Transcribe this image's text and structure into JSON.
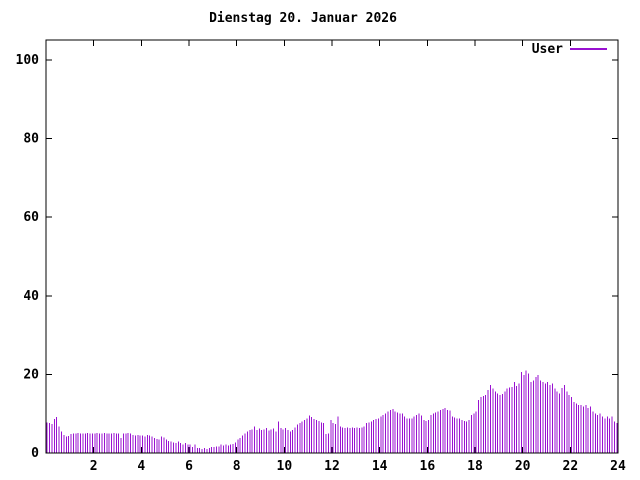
{
  "chart": {
    "title": "Dienstag 20. Januar 2026",
    "legend_label": "User"
  },
  "chart_data": {
    "type": "bar",
    "title": "Dienstag 20. Januar 2026",
    "series_name": "User",
    "x_unit": "hour_of_day",
    "sample_interval_hours": 0.1,
    "xlim": [
      0,
      24
    ],
    "ylim": [
      0,
      105
    ],
    "x_ticks": [
      2,
      4,
      6,
      8,
      10,
      12,
      14,
      16,
      18,
      20,
      22,
      24
    ],
    "y_ticks": [
      0,
      20,
      40,
      60,
      80,
      100
    ],
    "grid": false,
    "legend_position": "top-right",
    "bar_color": "#9911d1",
    "axis_color": "#000000",
    "values": [
      7.7,
      7.6,
      7.4,
      8.6,
      9.1,
      6.7,
      5.5,
      4.6,
      4.2,
      4.3,
      4.8,
      5.0,
      4.9,
      5.1,
      5.0,
      4.9,
      5.0,
      5.1,
      4.9,
      5.0,
      5.0,
      5.1,
      4.9,
      5.0,
      5.1,
      5.0,
      4.9,
      5.0,
      5.1,
      5.0,
      4.9,
      3.8,
      5.0,
      4.9,
      5.1,
      5.0,
      4.6,
      4.4,
      4.6,
      4.5,
      4.4,
      4.2,
      4.6,
      4.4,
      4.2,
      3.8,
      3.6,
      3.4,
      4.2,
      4.0,
      3.4,
      3.0,
      2.9,
      2.7,
      2.5,
      2.9,
      2.5,
      2.1,
      2.5,
      2.1,
      2.1,
      1.5,
      2.1,
      1.3,
      1.3,
      1.0,
      1.3,
      1.0,
      1.3,
      1.5,
      1.5,
      1.7,
      1.7,
      2.1,
      1.9,
      2.1,
      1.9,
      2.1,
      2.3,
      2.7,
      3.4,
      3.8,
      4.4,
      5.0,
      5.5,
      5.8,
      6.0,
      6.7,
      5.9,
      6.2,
      5.8,
      6.0,
      6.3,
      5.7,
      6.0,
      6.2,
      5.5,
      8.0,
      6.3,
      6.0,
      6.3,
      5.8,
      5.5,
      5.9,
      6.5,
      7.2,
      7.6,
      8.0,
      8.4,
      8.8,
      9.5,
      9.2,
      8.6,
      8.4,
      8.2,
      7.8,
      7.6,
      4.8,
      5.0,
      8.4,
      7.6,
      7.4,
      9.3,
      6.7,
      6.5,
      6.3,
      6.5,
      6.3,
      6.5,
      6.3,
      6.5,
      6.3,
      6.5,
      6.7,
      7.6,
      7.8,
      8.0,
      8.4,
      8.6,
      8.8,
      9.3,
      9.7,
      10.1,
      10.5,
      11.0,
      11.2,
      10.5,
      10.3,
      10.1,
      10.0,
      9.3,
      8.8,
      8.8,
      8.8,
      9.3,
      9.7,
      10.0,
      9.5,
      8.4,
      8.2,
      8.4,
      9.7,
      10.1,
      10.3,
      10.5,
      11.0,
      11.2,
      11.5,
      11.0,
      10.8,
      9.3,
      9.0,
      8.8,
      8.8,
      8.4,
      8.2,
      8.0,
      8.4,
      9.7,
      10.1,
      10.5,
      13.5,
      14.3,
      14.5,
      14.7,
      16.0,
      17.3,
      16.4,
      15.6,
      15.2,
      14.7,
      15.0,
      15.6,
      16.4,
      16.7,
      16.8,
      18.1,
      17.0,
      17.7,
      20.6,
      19.8,
      21.0,
      20.2,
      18.1,
      18.5,
      19.4,
      19.8,
      18.5,
      18.1,
      17.7,
      18.1,
      17.3,
      17.7,
      16.4,
      15.6,
      15.2,
      16.6,
      17.3,
      15.6,
      14.7,
      14.3,
      13.0,
      12.6,
      12.2,
      12.2,
      11.8,
      12.2,
      11.4,
      11.8,
      10.5,
      10.1,
      9.7,
      10.1,
      9.3,
      8.8,
      9.3,
      8.8,
      9.3,
      8.0,
      7.6
    ]
  }
}
